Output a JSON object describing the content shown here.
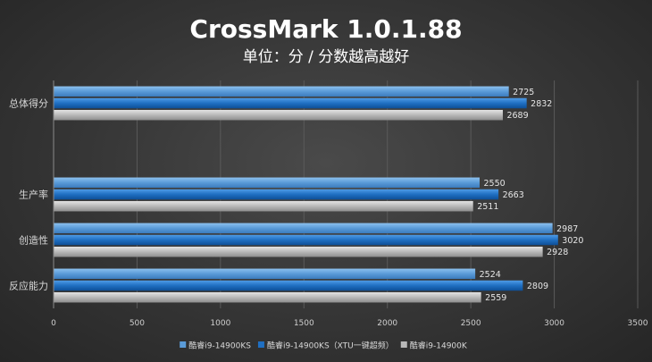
{
  "chart_data": {
    "type": "bar",
    "orientation": "horizontal",
    "title": "CrossMark 1.0.1.88",
    "subtitle": "单位：分 / 分数越高越好",
    "categories": [
      "总体得分",
      "",
      "生产率",
      "创造性",
      "反应能力"
    ],
    "series": [
      {
        "name": "酷睿i9-14900KS",
        "values": [
          2725,
          null,
          2550,
          2987,
          2524
        ],
        "color": "#5a9bd8"
      },
      {
        "name": "酷睿i9-14900KS（XTU一键超频）",
        "values": [
          2832,
          null,
          2663,
          3020,
          2809
        ],
        "color": "#1f6fc2"
      },
      {
        "name": "酷睿i9-14900K",
        "values": [
          2689,
          null,
          2511,
          2928,
          2559
        ],
        "color": "#b8b8b8"
      }
    ],
    "xlim": [
      0,
      3500
    ],
    "xticks": [
      0,
      500,
      1000,
      1500,
      2000,
      2500,
      3000,
      3500
    ],
    "grid": true,
    "legend": "bottom"
  }
}
